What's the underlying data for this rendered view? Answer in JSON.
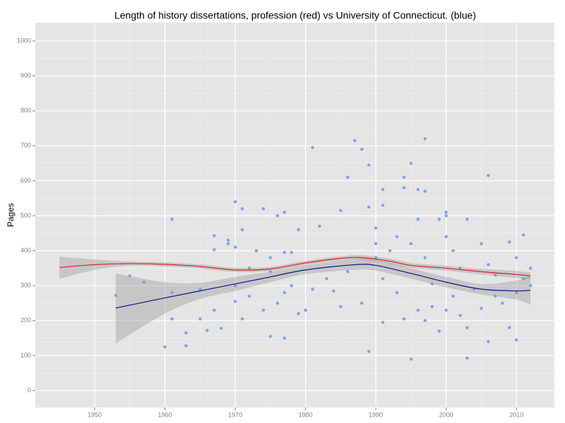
{
  "chart_data": {
    "type": "scatter",
    "title": "Length of history dissertations, profession (red) vs University of Connecticut. (blue)",
    "y_label": "Pages",
    "xlim": [
      1941.56,
      2015.4
    ],
    "ylim": [
      -48.4,
      1052.4
    ],
    "xticks": [
      1950,
      1960,
      1970,
      1980,
      1990,
      2000,
      2010
    ],
    "yticks": [
      0,
      100,
      200,
      300,
      400,
      500,
      600,
      700,
      800,
      900,
      1000
    ],
    "grid": true,
    "points": {
      "color": "#7a9ee8",
      "x": [
        1953,
        1955,
        1957,
        1960,
        1961,
        1961,
        1961,
        1963,
        1963,
        1965,
        1965,
        1966,
        1967,
        1967,
        1967,
        1968,
        1969,
        1969,
        1970,
        1970,
        1970,
        1970,
        1971,
        1971,
        1971,
        1972,
        1972,
        1973,
        1974,
        1974,
        1975,
        1975,
        1975,
        1976,
        1976,
        1977,
        1977,
        1977,
        1977,
        1978,
        1978,
        1979,
        1979,
        1980,
        1981,
        1981,
        1982,
        1983,
        1984,
        1985,
        1985,
        1986,
        1986,
        1987,
        1988,
        1988,
        1989,
        1989,
        1989,
        1990,
        1990,
        1990,
        1991,
        1991,
        1991,
        1991,
        1992,
        1993,
        1993,
        1994,
        1994,
        1994,
        1995,
        1995,
        1995,
        1996,
        1996,
        1996,
        1997,
        1997,
        1997,
        1997,
        1998,
        1998,
        1999,
        1999,
        2000,
        2000,
        2000,
        2000,
        2001,
        2001,
        2002,
        2002,
        2003,
        2003,
        2003,
        2004,
        2005,
        2005,
        2006,
        2006,
        2006,
        2007,
        2007,
        2008,
        2009,
        2009,
        2010,
        2010,
        2010,
        2011,
        2011,
        2012,
        2012
      ],
      "y": [
        272,
        328,
        310,
        125,
        205,
        280,
        490,
        165,
        128,
        205,
        290,
        172,
        443,
        403,
        230,
        178,
        420,
        430,
        540,
        410,
        300,
        255,
        460,
        520,
        205,
        350,
        270,
        400,
        520,
        230,
        155,
        340,
        380,
        500,
        250,
        510,
        395,
        150,
        280,
        395,
        300,
        460,
        220,
        230,
        695,
        290,
        470,
        320,
        285,
        240,
        515,
        610,
        340,
        715,
        690,
        250,
        645,
        525,
        112,
        465,
        380,
        420,
        575,
        530,
        195,
        320,
        400,
        440,
        280,
        610,
        580,
        205,
        650,
        90,
        420,
        575,
        490,
        230,
        720,
        570,
        200,
        380,
        305,
        240,
        490,
        170,
        510,
        500,
        440,
        230,
        400,
        270,
        350,
        215,
        490,
        93,
        180,
        290,
        420,
        235,
        615,
        140,
        360,
        330,
        270,
        250,
        425,
        180,
        380,
        280,
        145,
        445,
        320,
        350,
        300
      ]
    },
    "lines": [
      {
        "color": "#e02020",
        "x": [
          1945,
          1950,
          1955,
          1960,
          1965,
          1970,
          1975,
          1980,
          1985,
          1988,
          1992,
          1995,
          2000,
          2005,
          2010,
          2012
        ],
        "values": [
          352,
          360,
          363,
          361,
          355,
          345,
          348,
          365,
          378,
          380,
          370,
          358,
          350,
          340,
          332,
          328
        ],
        "lower": [
          320,
          345,
          357,
          355,
          349,
          339,
          342,
          359,
          372,
          373,
          363,
          351,
          343,
          332,
          322,
          318
        ],
        "upper": [
          383,
          375,
          369,
          367,
          361,
          351,
          354,
          371,
          384,
          387,
          377,
          365,
          357,
          348,
          342,
          338
        ]
      },
      {
        "color": "#10108a",
        "x": [
          1953,
          1960,
          1965,
          1970,
          1975,
          1980,
          1987,
          1990,
          1995,
          2000,
          2005,
          2010,
          2012
        ],
        "values": [
          236,
          265,
          285,
          305,
          325,
          345,
          360,
          358,
          335,
          310,
          290,
          285,
          287
        ],
        "lower": [
          135,
          220,
          262,
          285,
          310,
          333,
          345,
          343,
          320,
          295,
          275,
          260,
          245
        ],
        "upper": [
          335,
          310,
          308,
          325,
          340,
          358,
          375,
          373,
          350,
          325,
          305,
          315,
          330
        ]
      }
    ]
  }
}
